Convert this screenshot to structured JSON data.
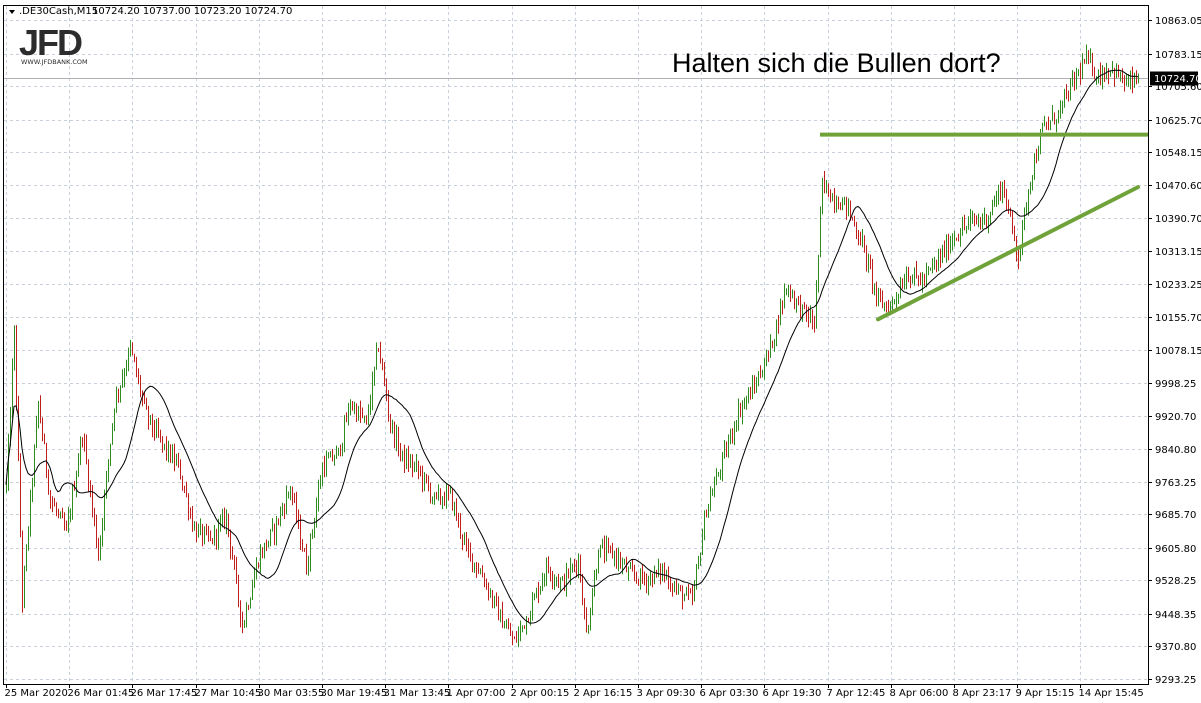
{
  "header": {
    "symbol": ".DE30Cash,M15",
    "ohlc": "10724.20 10737.00 10723.20 10724.70"
  },
  "logo": {
    "brand": "JFD",
    "url": "WWW.JFDBANK.COM"
  },
  "annotation": {
    "headline": "Halten sich die Bullen dort?"
  },
  "price_tag": {
    "label": "10724.70",
    "value": 10724.7
  },
  "colors": {
    "up": "#2e8b1e",
    "down": "#c0201c",
    "ma": "#000000",
    "trendline": "#6fa33a",
    "grid": "#c8d0dc",
    "price_line": "#b0b0b0"
  },
  "chart_data": {
    "type": "candlestick",
    "title": "",
    "xlabel": "",
    "ylabel": "",
    "ylim": [
      9293.25,
      10863.05
    ],
    "grid": true,
    "y_ticks": [
      "10863.05",
      "10783.15",
      "10705.60",
      "10625.70",
      "10548.15",
      "10470.60",
      "10390.70",
      "10313.15",
      "10233.25",
      "10155.70",
      "10078.15",
      "9998.25",
      "9920.70",
      "9840.80",
      "9763.25",
      "9685.70",
      "9605.80",
      "9528.25",
      "9448.35",
      "9370.80",
      "9293.25"
    ],
    "x_ticks": [
      "25 Mar 2020",
      "26 Mar 01:45",
      "26 Mar 17:45",
      "27 Mar 10:45",
      "30 Mar 03:55",
      "30 Mar 19:45",
      "31 Mar 13:45",
      "1 Apr 07:00",
      "2 Apr 00:15",
      "2 Apr 16:15",
      "3 Apr 09:30",
      "6 Apr 03:30",
      "6 Apr 19:30",
      "7 Apr 12:45",
      "8 Apr 06:00",
      "8 Apr 23:17",
      "9 Apr 15:15",
      "14 Apr 15:45"
    ],
    "price_anchors": [
      [
        0,
        9750
      ],
      [
        4,
        10120
      ],
      [
        8,
        9480
      ],
      [
        16,
        9950
      ],
      [
        22,
        9720
      ],
      [
        30,
        9640
      ],
      [
        38,
        9880
      ],
      [
        46,
        9590
      ],
      [
        54,
        9950
      ],
      [
        62,
        10080
      ],
      [
        70,
        9920
      ],
      [
        78,
        9850
      ],
      [
        86,
        9800
      ],
      [
        94,
        9650
      ],
      [
        102,
        9620
      ],
      [
        110,
        9680
      ],
      [
        118,
        9420
      ],
      [
        126,
        9580
      ],
      [
        134,
        9650
      ],
      [
        142,
        9750
      ],
      [
        150,
        9560
      ],
      [
        158,
        9800
      ],
      [
        166,
        9830
      ],
      [
        172,
        9950
      ],
      [
        180,
        9900
      ],
      [
        186,
        10090
      ],
      [
        192,
        9900
      ],
      [
        198,
        9820
      ],
      [
        206,
        9790
      ],
      [
        214,
        9720
      ],
      [
        222,
        9730
      ],
      [
        230,
        9600
      ],
      [
        238,
        9540
      ],
      [
        246,
        9450
      ],
      [
        254,
        9380
      ],
      [
        262,
        9460
      ],
      [
        270,
        9560
      ],
      [
        278,
        9520
      ],
      [
        286,
        9580
      ],
      [
        290,
        9400
      ],
      [
        296,
        9600
      ],
      [
        304,
        9590
      ],
      [
        312,
        9540
      ],
      [
        320,
        9530
      ],
      [
        328,
        9550
      ],
      [
        336,
        9500
      ],
      [
        343,
        9480
      ],
      [
        350,
        9700
      ],
      [
        358,
        9810
      ],
      [
        366,
        9930
      ],
      [
        374,
        9990
      ],
      [
        382,
        10080
      ],
      [
        390,
        10230
      ],
      [
        398,
        10170
      ],
      [
        404,
        10140
      ],
      [
        408,
        10470
      ],
      [
        414,
        10440
      ],
      [
        420,
        10420
      ],
      [
        428,
        10330
      ],
      [
        436,
        10190
      ],
      [
        442,
        10180
      ],
      [
        450,
        10260
      ],
      [
        458,
        10240
      ],
      [
        466,
        10290
      ],
      [
        474,
        10350
      ],
      [
        482,
        10380
      ],
      [
        490,
        10390
      ],
      [
        498,
        10470
      ],
      [
        506,
        10300
      ],
      [
        512,
        10490
      ],
      [
        518,
        10600
      ],
      [
        526,
        10640
      ],
      [
        534,
        10720
      ],
      [
        540,
        10770
      ],
      [
        546,
        10730
      ],
      [
        552,
        10750
      ],
      [
        560,
        10710
      ],
      [
        566,
        10720
      ]
    ],
    "annotations": {
      "resistance_level": 10590,
      "support_trendline": {
        "from_index": 436,
        "from_value": 10150,
        "to_index": 566,
        "to_value": 10465
      }
    }
  }
}
